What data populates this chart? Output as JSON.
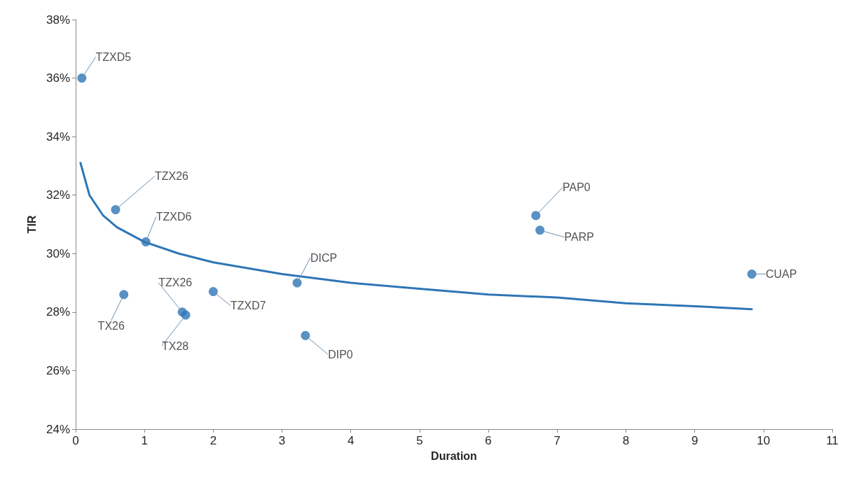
{
  "chart_data": {
    "type": "scatter",
    "xlabel": "Duration",
    "ylabel": "TIR",
    "xlim": [
      0,
      11
    ],
    "xticks": [
      0,
      1,
      2,
      3,
      4,
      5,
      6,
      7,
      8,
      9,
      10,
      11
    ],
    "ylim": [
      24,
      38
    ],
    "yticks": [
      {
        "value": 24,
        "label": "24%"
      },
      {
        "value": 26,
        "label": "26%"
      },
      {
        "value": 28,
        "label": "28%"
      },
      {
        "value": 30,
        "label": "30%"
      },
      {
        "value": 32,
        "label": "32%"
      },
      {
        "value": 34,
        "label": "34%"
      },
      {
        "value": 36,
        "label": "36%"
      },
      {
        "value": 38,
        "label": "38%"
      }
    ],
    "grid": false,
    "marker": "circle",
    "series": [
      {
        "color": "#2e75b6",
        "x": [
          0.09,
          0.58,
          1.02,
          0.7,
          1.55,
          1.6,
          2.0,
          3.22,
          3.34,
          6.69,
          6.75,
          9.83
        ],
        "values": [
          36.0,
          31.5,
          30.4,
          28.6,
          28.0,
          27.9,
          28.7,
          29.0,
          27.2,
          31.3,
          30.8,
          29.3
        ]
      },
      {
        "type": "line",
        "color": "#2e75b6",
        "marker": "none",
        "line_style": "solid",
        "x": [
          0.07,
          0.2,
          0.4,
          0.6,
          1,
          1.5,
          2,
          3,
          4,
          5,
          6,
          7,
          8,
          9,
          9.83
        ],
        "values": [
          33.1,
          32.0,
          31.3,
          30.9,
          30.4,
          30.0,
          29.7,
          29.3,
          29.0,
          28.8,
          28.6,
          28.5,
          28.3,
          28.2,
          28.1
        ]
      }
    ],
    "annotations": [
      {
        "text": "TZXD5",
        "x": 0.09,
        "y": 36.0
      },
      {
        "text": "TZX26",
        "x": 0.58,
        "y": 31.5
      },
      {
        "text": "TZXD6",
        "x": 1.02,
        "y": 30.4
      },
      {
        "text": "TX26",
        "x": 0.7,
        "y": 28.6
      },
      {
        "text": "TZX26",
        "x": 1.55,
        "y": 28.0
      },
      {
        "text": "TX28",
        "x": 1.6,
        "y": 27.9
      },
      {
        "text": "TZXD7",
        "x": 2.0,
        "y": 28.7
      },
      {
        "text": "DICP",
        "x": 3.22,
        "y": 29.0
      },
      {
        "text": "DIP0",
        "x": 3.34,
        "y": 27.2
      },
      {
        "text": "PAP0",
        "x": 6.69,
        "y": 31.3
      },
      {
        "text": "PARP",
        "x": 6.75,
        "y": 30.8
      },
      {
        "text": "CUAP",
        "x": 9.83,
        "y": 29.3
      }
    ]
  }
}
